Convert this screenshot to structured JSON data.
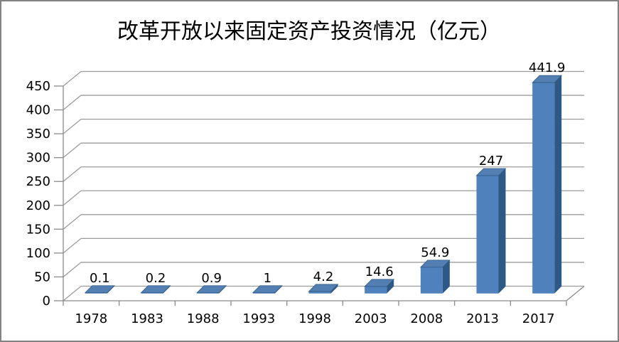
{
  "chart_data": {
    "type": "bar",
    "style": "3d-column",
    "title": "改革开放以来固定资产投资情况（亿元）",
    "categories": [
      "1978",
      "1983",
      "1988",
      "1993",
      "1998",
      "2003",
      "2008",
      "2013",
      "2017"
    ],
    "values": [
      0.1,
      0.2,
      0.9,
      1,
      4.2,
      14.6,
      54.9,
      247,
      441.9
    ],
    "data_labels": [
      "0.1",
      "0.2",
      "0.9",
      "1",
      "4.2",
      "14.6",
      "54.9",
      "247",
      "441.9"
    ],
    "ylim": [
      0,
      450
    ],
    "ytick_step": 50,
    "ytick_labels": [
      "0",
      "50",
      "100",
      "150",
      "200",
      "250",
      "300",
      "350",
      "400",
      "450"
    ],
    "xlabel": "",
    "ylabel": "",
    "grid": true,
    "legend": "none",
    "colors": {
      "bar_front": "#4F81BD",
      "bar_top": "#537FB2",
      "bar_side": "#2E5984",
      "gridline": "#9C9C9C",
      "axis": "#8A8A8A",
      "text": "#000000",
      "background": "#FFFFFF",
      "border": "#828282"
    }
  }
}
